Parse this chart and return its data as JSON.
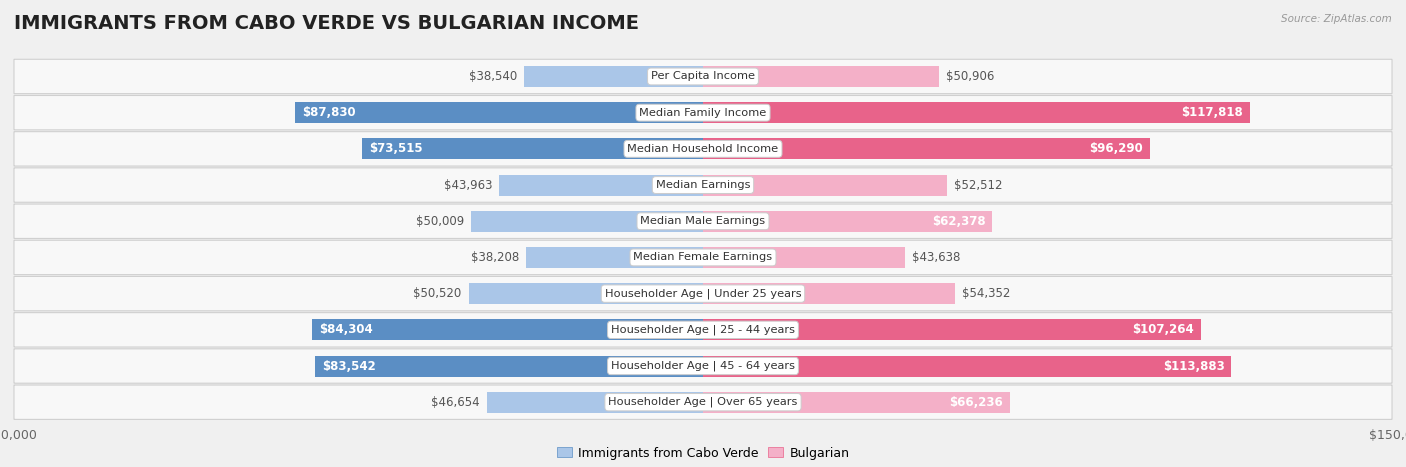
{
  "title": "IMMIGRANTS FROM CABO VERDE VS BULGARIAN INCOME",
  "source": "Source: ZipAtlas.com",
  "categories": [
    "Per Capita Income",
    "Median Family Income",
    "Median Household Income",
    "Median Earnings",
    "Median Male Earnings",
    "Median Female Earnings",
    "Householder Age | Under 25 years",
    "Householder Age | 25 - 44 years",
    "Householder Age | 45 - 64 years",
    "Householder Age | Over 65 years"
  ],
  "cabo_verde_values": [
    38540,
    87830,
    73515,
    43963,
    50009,
    38208,
    50520,
    84304,
    83542,
    46654
  ],
  "bulgarian_values": [
    50906,
    117818,
    96290,
    52512,
    62378,
    43638,
    54352,
    107264,
    113883,
    66236
  ],
  "cabo_verde_color_strong": "#5b8ec4",
  "cabo_verde_color_light": "#aac6e8",
  "bulgarian_color_strong": "#e8638a",
  "bulgarian_color_light": "#f4b0c8",
  "cabo_verde_threshold": 67000,
  "bulgarian_threshold": 85000,
  "max_value": 150000,
  "bg_color": "#f0f0f0",
  "row_bg_color": "#f8f8f8",
  "row_border_color": "#d0d0d0",
  "title_fontsize": 14,
  "label_fontsize": 8.5,
  "tick_fontsize": 9,
  "legend_fontsize": 9,
  "category_fontsize": 8.2,
  "inside_label_color": "#ffffff",
  "outside_label_color": "#555555"
}
